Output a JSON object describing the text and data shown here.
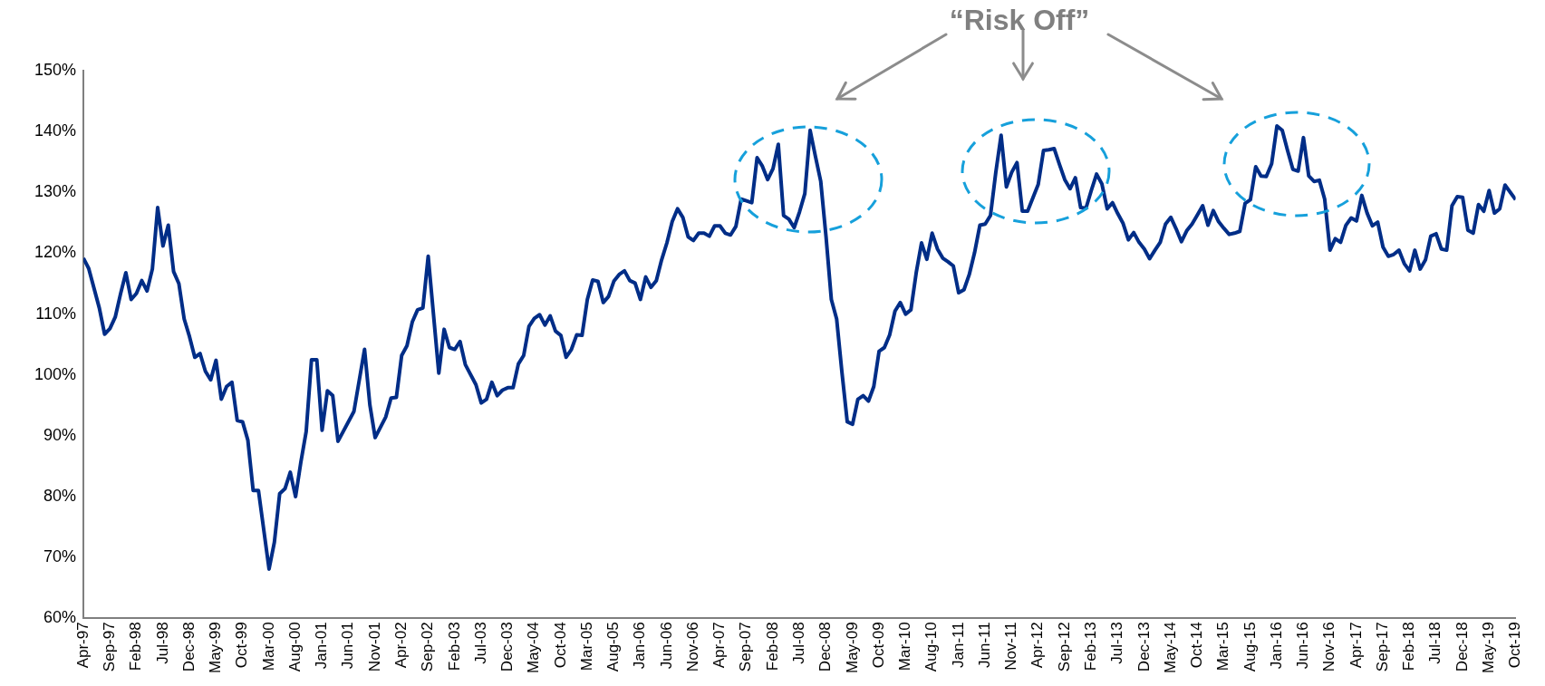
{
  "chart_data": {
    "type": "line",
    "annotations": [
      "“Risk Off”"
    ],
    "xlim": [
      "1997-04",
      "2019-10"
    ],
    "xticks": [
      {
        "value": "1997-04",
        "label": "Apr-97"
      },
      {
        "value": "1997-09",
        "label": "Sep-97"
      },
      {
        "value": "1998-02",
        "label": "Feb-98"
      },
      {
        "value": "1998-07",
        "label": "Jul-98"
      },
      {
        "value": "1998-12",
        "label": "Dec-98"
      },
      {
        "value": "1999-05",
        "label": "May-99"
      },
      {
        "value": "1999-10",
        "label": "Oct-99"
      },
      {
        "value": "2000-03",
        "label": "Mar-00"
      },
      {
        "value": "2000-08",
        "label": "Aug-00"
      },
      {
        "value": "2001-01",
        "label": "Jan-01"
      },
      {
        "value": "2001-06",
        "label": "Jun-01"
      },
      {
        "value": "2001-11",
        "label": "Nov-01"
      },
      {
        "value": "2002-04",
        "label": "Apr-02"
      },
      {
        "value": "2002-09",
        "label": "Sep-02"
      },
      {
        "value": "2003-02",
        "label": "Feb-03"
      },
      {
        "value": "2003-07",
        "label": "Jul-03"
      },
      {
        "value": "2003-12",
        "label": "Dec-03"
      },
      {
        "value": "2004-05",
        "label": "May-04"
      },
      {
        "value": "2004-10",
        "label": "Oct-04"
      },
      {
        "value": "2005-03",
        "label": "Mar-05"
      },
      {
        "value": "2005-08",
        "label": "Aug-05"
      },
      {
        "value": "2006-01",
        "label": "Jan-06"
      },
      {
        "value": "2006-06",
        "label": "Jun-06"
      },
      {
        "value": "2006-11",
        "label": "Nov-06"
      },
      {
        "value": "2007-04",
        "label": "Apr-07"
      },
      {
        "value": "2007-09",
        "label": "Sep-07"
      },
      {
        "value": "2008-02",
        "label": "Feb-08"
      },
      {
        "value": "2008-07",
        "label": "Jul-08"
      },
      {
        "value": "2008-12",
        "label": "Dec-08"
      },
      {
        "value": "2009-05",
        "label": "May-09"
      },
      {
        "value": "2009-10",
        "label": "Oct-09"
      },
      {
        "value": "2010-03",
        "label": "Mar-10"
      },
      {
        "value": "2010-08",
        "label": "Aug-10"
      },
      {
        "value": "2011-01",
        "label": "Jan-11"
      },
      {
        "value": "2011-06",
        "label": "Jun-11"
      },
      {
        "value": "2011-11",
        "label": "Nov-11"
      },
      {
        "value": "2012-04",
        "label": "Apr-12"
      },
      {
        "value": "2012-09",
        "label": "Sep-12"
      },
      {
        "value": "2013-02",
        "label": "Feb-13"
      },
      {
        "value": "2013-07",
        "label": "Jul-13"
      },
      {
        "value": "2013-12",
        "label": "Dec-13"
      },
      {
        "value": "2014-05",
        "label": "May-14"
      },
      {
        "value": "2014-10",
        "label": "Oct-14"
      },
      {
        "value": "2015-03",
        "label": "Mar-15"
      },
      {
        "value": "2015-08",
        "label": "Aug-15"
      },
      {
        "value": "2016-01",
        "label": "Jan-16"
      },
      {
        "value": "2016-06",
        "label": "Jun-16"
      },
      {
        "value": "2016-11",
        "label": "Nov-16"
      },
      {
        "value": "2017-04",
        "label": "Apr-17"
      },
      {
        "value": "2017-09",
        "label": "Sep-17"
      },
      {
        "value": "2018-02",
        "label": "Feb-18"
      },
      {
        "value": "2018-07",
        "label": "Jul-18"
      },
      {
        "value": "2018-12",
        "label": "Dec-18"
      },
      {
        "value": "2019-05",
        "label": "May-19"
      },
      {
        "value": "2019-10",
        "label": "Oct-19"
      }
    ],
    "ylim": [
      60,
      150
    ],
    "yticks": [
      {
        "value": 60,
        "label": "60%"
      },
      {
        "value": 70,
        "label": "70%"
      },
      {
        "value": 80,
        "label": "80%"
      },
      {
        "value": 90,
        "label": "90%"
      },
      {
        "value": 100,
        "label": "100%"
      },
      {
        "value": 110,
        "label": "110%"
      },
      {
        "value": 120,
        "label": "120%"
      },
      {
        "value": 130,
        "label": "130%"
      },
      {
        "value": 140,
        "label": "140%"
      },
      {
        "value": 150,
        "label": "150%"
      }
    ],
    "grid": false,
    "legend": false,
    "marker": "none",
    "line_style": "solid",
    "series": [
      {
        "color": "#002d87",
        "x": [
          "1997-04",
          "1997-05",
          "1997-07",
          "1997-08",
          "1997-09",
          "1997-10",
          "1997-11",
          "1997-12",
          "1998-01",
          "1998-02",
          "1998-03",
          "1998-04",
          "1998-05",
          "1998-06",
          "1998-07",
          "1998-08",
          "1998-09",
          "1998-10",
          "1998-11",
          "1998-12",
          "1999-01",
          "1999-02",
          "1999-03",
          "1999-04",
          "1999-05",
          "1999-06",
          "1999-07",
          "1999-08",
          "1999-09",
          "1999-10",
          "1999-11",
          "1999-12",
          "2000-01",
          "2000-03",
          "2000-04",
          "2000-05",
          "2000-06",
          "2000-07",
          "2000-08",
          "2000-09",
          "2000-10",
          "2000-11",
          "2000-12",
          "2001-01",
          "2001-02",
          "2001-03",
          "2001-04",
          "2001-07",
          "2001-09",
          "2001-10",
          "2001-11",
          "2002-01",
          "2002-02",
          "2002-03",
          "2002-04",
          "2002-05",
          "2002-06",
          "2002-07",
          "2002-08",
          "2002-09",
          "2002-11",
          "2002-12",
          "2003-01",
          "2003-02",
          "2003-03",
          "2003-04",
          "2003-06",
          "2003-07",
          "2003-08",
          "2003-09",
          "2003-10",
          "2003-11",
          "2003-12",
          "2004-01",
          "2004-02",
          "2004-03",
          "2004-04",
          "2004-05",
          "2004-06",
          "2004-07",
          "2004-08",
          "2004-09",
          "2004-10",
          "2004-11",
          "2004-12",
          "2005-01",
          "2005-02",
          "2005-03",
          "2005-04",
          "2005-05",
          "2005-06",
          "2005-07",
          "2005-08",
          "2005-09",
          "2005-10",
          "2005-11",
          "2005-12",
          "2006-01",
          "2006-02",
          "2006-03",
          "2006-04",
          "2006-05",
          "2006-06",
          "2006-07",
          "2006-08",
          "2006-09",
          "2006-10",
          "2006-11",
          "2006-12",
          "2007-01",
          "2007-02",
          "2007-03",
          "2007-04",
          "2007-05",
          "2007-06",
          "2007-07",
          "2007-08",
          "2007-09",
          "2007-10",
          "2007-11",
          "2007-12",
          "2008-01",
          "2008-02",
          "2008-03",
          "2008-04",
          "2008-05",
          "2008-06",
          "2008-07",
          "2008-08",
          "2008-09",
          "2008-10",
          "2008-11",
          "2008-12",
          "2009-01",
          "2009-02",
          "2009-03",
          "2009-04",
          "2009-05",
          "2009-06",
          "2009-07",
          "2009-08",
          "2009-09",
          "2009-10",
          "2009-11",
          "2009-12",
          "2010-01",
          "2010-02",
          "2010-03",
          "2010-04",
          "2010-05",
          "2010-06",
          "2010-07",
          "2010-08",
          "2010-09",
          "2010-10",
          "2010-11",
          "2010-12",
          "2011-01",
          "2011-02",
          "2011-03",
          "2011-04",
          "2011-05",
          "2011-06",
          "2011-07",
          "2011-08",
          "2011-09",
          "2011-10",
          "2011-11",
          "2011-12",
          "2012-01",
          "2012-02",
          "2012-03",
          "2012-04",
          "2012-05",
          "2012-06",
          "2012-07",
          "2012-08",
          "2012-09",
          "2012-10",
          "2012-11",
          "2012-12",
          "2013-01",
          "2013-02",
          "2013-03",
          "2013-04",
          "2013-05",
          "2013-06",
          "2013-07",
          "2013-08",
          "2013-09",
          "2013-10",
          "2013-11",
          "2013-12",
          "2014-01",
          "2014-02",
          "2014-03",
          "2014-04",
          "2014-05",
          "2014-06",
          "2014-07",
          "2014-08",
          "2014-09",
          "2014-10",
          "2014-11",
          "2014-12",
          "2015-01",
          "2015-02",
          "2015-03",
          "2015-04",
          "2015-05",
          "2015-06",
          "2015-07",
          "2015-08",
          "2015-09",
          "2015-10",
          "2015-11",
          "2015-12",
          "2016-01",
          "2016-02",
          "2016-03",
          "2016-04",
          "2016-05",
          "2016-06",
          "2016-07",
          "2016-08",
          "2016-09",
          "2016-10",
          "2016-11",
          "2016-12",
          "2017-01",
          "2017-02",
          "2017-03",
          "2017-04",
          "2017-05",
          "2017-06",
          "2017-07",
          "2017-08",
          "2017-09",
          "2017-10",
          "2017-11",
          "2017-12",
          "2018-01",
          "2018-02",
          "2018-03",
          "2018-04",
          "2018-05",
          "2018-06",
          "2018-07",
          "2018-08",
          "2018-09",
          "2018-10",
          "2018-11",
          "2018-12",
          "2019-01",
          "2019-02",
          "2019-03",
          "2019-04",
          "2019-05",
          "2019-06",
          "2019-07",
          "2019-08",
          "2019-10"
        ],
        "values": [
          119.2,
          117.5,
          111.0,
          106.7,
          107.6,
          109.5,
          113.3,
          116.8,
          112.4,
          113.4,
          115.5,
          113.8,
          117.4,
          127.5,
          121.2,
          124.6,
          117.0,
          115.0,
          109.2,
          106.3,
          102.9,
          103.5,
          100.6,
          99.2,
          102.4,
          96.0,
          98.1,
          98.8,
          92.5,
          92.3,
          89.3,
          81.0,
          81.0,
          68.1,
          72.5,
          80.5,
          81.3,
          84.0,
          80.0,
          85.7,
          90.7,
          102.5,
          102.5,
          90.9,
          97.4,
          96.6,
          89.1,
          94.0,
          104.2,
          95.1,
          89.7,
          93.1,
          96.2,
          96.3,
          103.2,
          104.8,
          108.7,
          110.7,
          111.0,
          119.5,
          100.3,
          107.5,
          104.5,
          104.2,
          105.5,
          101.7,
          98.4,
          95.4,
          96.0,
          98.8,
          96.6,
          97.5,
          97.9,
          97.9,
          101.8,
          103.2,
          108.0,
          109.3,
          109.9,
          108.2,
          109.7,
          107.2,
          106.5,
          102.9,
          104.2,
          106.6,
          106.5,
          112.4,
          115.6,
          115.4,
          111.9,
          112.9,
          115.4,
          116.5,
          117.1,
          115.5,
          115.1,
          112.4,
          116.1,
          114.4,
          115.5,
          118.9,
          121.7,
          125.2,
          127.3,
          125.9,
          122.7,
          122.1,
          123.3,
          123.3,
          122.8,
          124.5,
          124.5,
          123.3,
          123.0,
          124.4,
          128.9,
          128.6,
          128.3,
          135.7,
          134.3,
          132.1,
          133.9,
          137.9,
          126.2,
          125.6,
          124.2,
          126.8,
          129.8,
          140.2,
          135.9,
          131.8,
          122.7,
          112.4,
          109.2,
          100.4,
          92.3,
          91.9,
          96.0,
          96.6,
          95.7,
          98.1,
          103.9,
          104.5,
          106.6,
          110.5,
          111.9,
          110.0,
          110.7,
          116.8,
          121.7,
          119.0,
          123.3,
          120.7,
          119.2,
          118.6,
          117.9,
          113.5,
          114.0,
          116.5,
          120.1,
          124.6,
          124.8,
          126.2,
          133.3,
          139.4,
          130.9,
          133.3,
          134.9,
          126.9,
          126.9,
          129.1,
          131.3,
          136.9,
          137.0,
          137.2,
          134.6,
          132.1,
          130.6,
          132.4,
          127.5,
          127.4,
          130.3,
          133.0,
          131.4,
          127.3,
          128.3,
          126.5,
          124.9,
          122.2,
          123.4,
          121.8,
          120.7,
          119.1,
          120.5,
          121.8,
          124.8,
          125.9,
          124.0,
          121.9,
          123.7,
          124.8,
          126.3,
          127.8,
          124.6,
          127.0,
          125.2,
          124.1,
          123.1,
          123.3,
          123.6,
          128.2,
          128.8,
          134.2,
          132.7,
          132.6,
          134.7,
          140.9,
          140.2,
          136.9,
          133.8,
          133.5,
          139.0,
          132.7,
          131.8,
          132.0,
          128.9,
          120.5,
          122.4,
          121.8,
          124.6,
          125.8,
          125.3,
          129.5,
          126.6,
          124.5,
          125.1,
          121.0,
          119.5,
          119.8,
          120.5,
          118.3,
          117.1,
          120.5,
          117.4,
          118.9,
          122.8,
          123.2,
          120.7,
          120.5,
          127.8,
          129.3,
          129.2,
          123.8,
          123.3,
          128.0,
          126.9,
          130.3,
          126.6,
          127.3,
          131.2,
          128.8
        ]
      }
    ]
  }
}
